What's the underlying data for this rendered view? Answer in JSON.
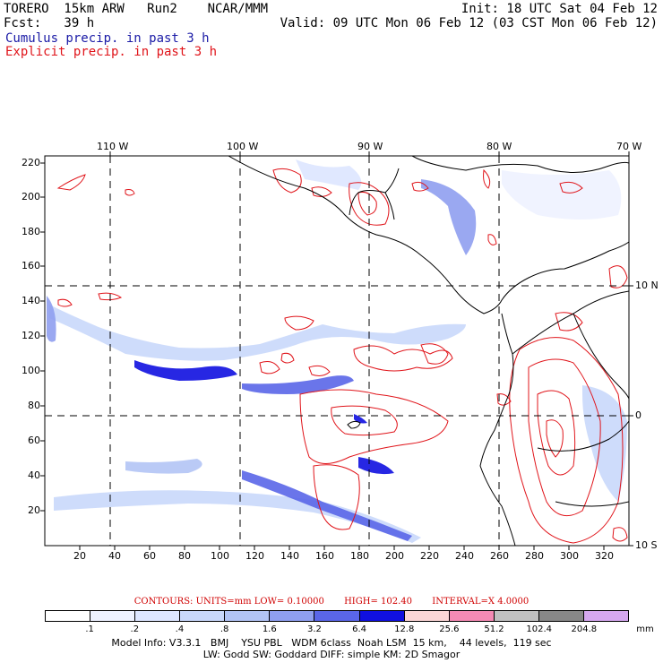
{
  "header": {
    "line1_left": "TORERO  15km ARW   Run2    NCAR/MMM",
    "line1_right": "Init: 18 UTC Sat 04 Feb 12",
    "line2_left": "Fcst:   39 h",
    "line2_right": "Valid: 09 UTC Mon 06 Feb 12 (03 CST Mon 06 Feb 12)",
    "legend_cumulus": "Cumulus precip. in past 3 h",
    "legend_explicit": "Explicit precip. in past 3 h"
  },
  "map": {
    "lon_labels": [
      "110 W",
      "100 W",
      "90 W",
      "80 W",
      "70 W"
    ],
    "lat_labels": [
      "10 N",
      "0",
      "10 S"
    ],
    "y_ticks": [
      "220",
      "200",
      "180",
      "160",
      "140",
      "120",
      "100",
      "80",
      "60",
      "40",
      "20"
    ],
    "x_ticks": [
      "20",
      "40",
      "60",
      "80",
      "100",
      "120",
      "140",
      "160",
      "180",
      "200",
      "220",
      "240",
      "260",
      "280",
      "300",
      "320"
    ]
  },
  "contours": {
    "units": "CONTOURS:  UNITS=mm  LOW= 0.10000",
    "high": "HIGH=  102.40",
    "interval": "INTERVAL=X  4.0000"
  },
  "colorbar": {
    "levels": [
      ".1",
      ".2",
      ".4",
      ".8",
      "1.6",
      "3.2",
      "6.4",
      "12.8",
      "25.6",
      "51.2",
      "102.4",
      "204.8"
    ],
    "unit": "mm",
    "colors": [
      "#ffffff",
      "#eef2ff",
      "#dde6ff",
      "#c9d8fb",
      "#b2c4f5",
      "#8f9ff0",
      "#5a66e8",
      "#1010e0",
      "#fbd6d6",
      "#f58ab4",
      "#c0c0c0",
      "#888888",
      "#d6a8ef"
    ]
  },
  "footer": {
    "line1": "Model Info: V3.3.1   BMJ    YSU PBL   WDM 6class  Noah LSM  15 km,    44 levels,  119 sec",
    "line2": "LW: Godd SW: Goddard DIFF: simple KM: 2D Smagor"
  }
}
